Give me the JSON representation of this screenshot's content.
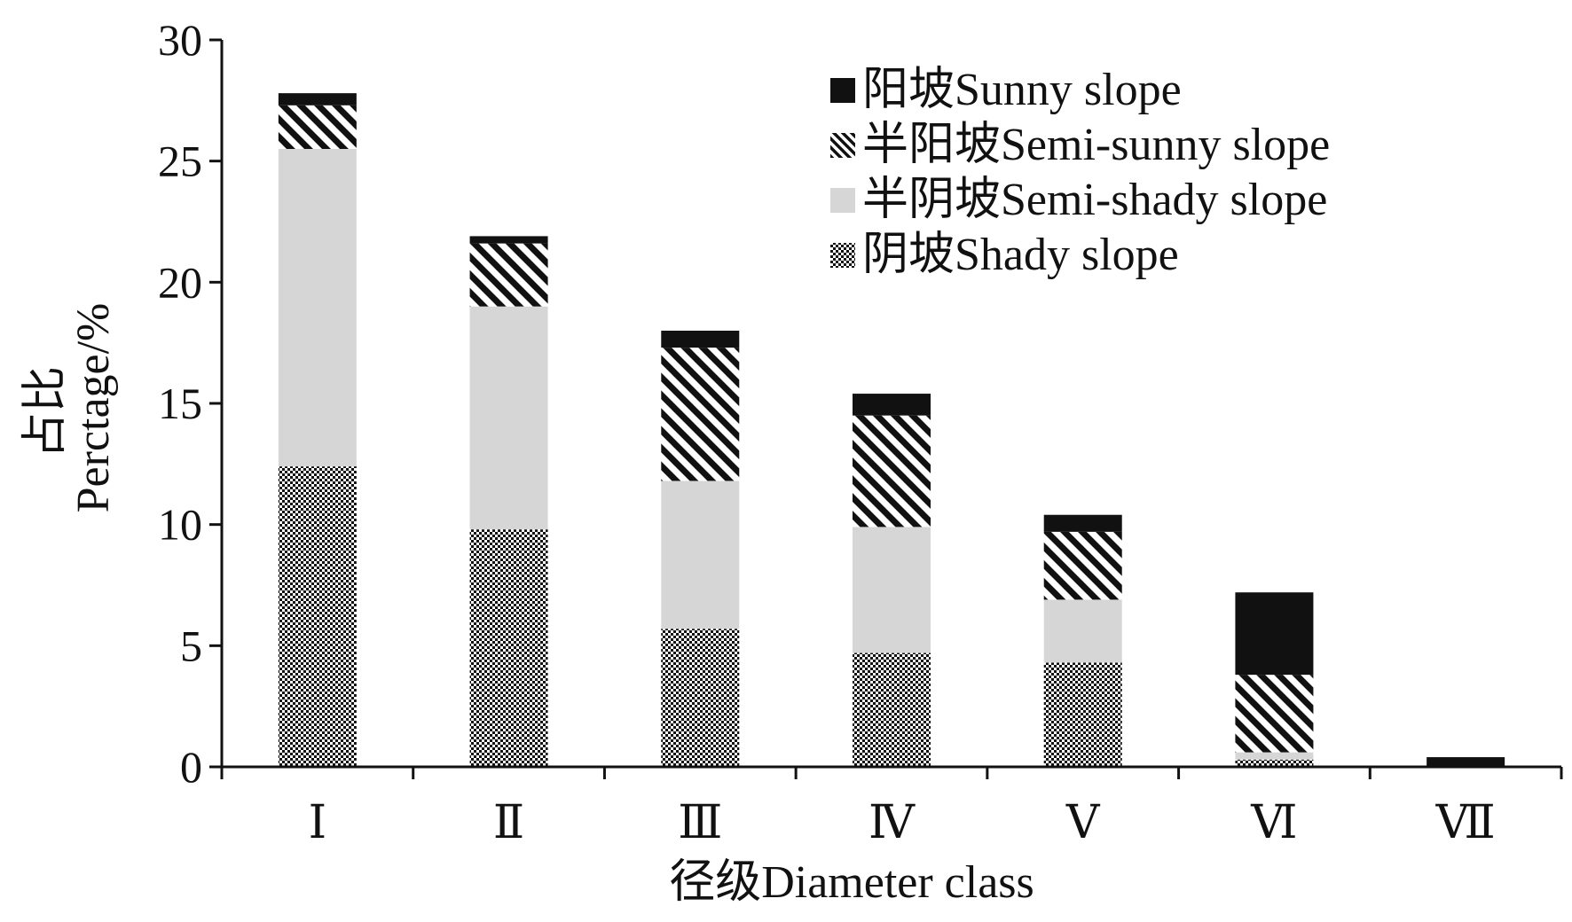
{
  "chart_data": {
    "type": "bar",
    "stacked": true,
    "xlabel": "径级Diameter class",
    "ylabel_cn": "占比",
    "ylabel_en": "Perctage/%",
    "ylim": [
      0,
      30
    ],
    "yticks": [
      0,
      5,
      10,
      15,
      20,
      25,
      30
    ],
    "categories": [
      "Ⅰ",
      "Ⅱ",
      "Ⅲ",
      "Ⅳ",
      "Ⅴ",
      "Ⅵ",
      "Ⅶ"
    ],
    "series": [
      {
        "name": "阴坡Shady slope",
        "pattern": "checker",
        "values": [
          12.4,
          9.8,
          5.7,
          4.7,
          4.3,
          0.3,
          0
        ]
      },
      {
        "name": "半阴坡Semi-shady slope",
        "pattern": "light-gray",
        "values": [
          13.1,
          9.2,
          6.1,
          5.2,
          2.6,
          0.3,
          0
        ]
      },
      {
        "name": "半阳坡Semi-sunny slope",
        "pattern": "diagonal-hatch",
        "values": [
          1.8,
          2.6,
          5.5,
          4.6,
          2.8,
          3.2,
          0
        ]
      },
      {
        "name": "阳坡Sunny slope",
        "pattern": "black",
        "values": [
          0.5,
          0.3,
          0.7,
          0.9,
          0.7,
          3.4,
          0.4
        ]
      }
    ],
    "legend_order": [
      "阳坡Sunny slope",
      "半阳坡Semi-sunny slope",
      "半阴坡Semi-shady slope",
      "阴坡Shady slope"
    ],
    "legend_position": "top-right",
    "grid": false,
    "colors": {
      "axis": "#111111",
      "black": "#111111",
      "light_gray": "#d6d6d6",
      "hatch": "#111111"
    }
  }
}
